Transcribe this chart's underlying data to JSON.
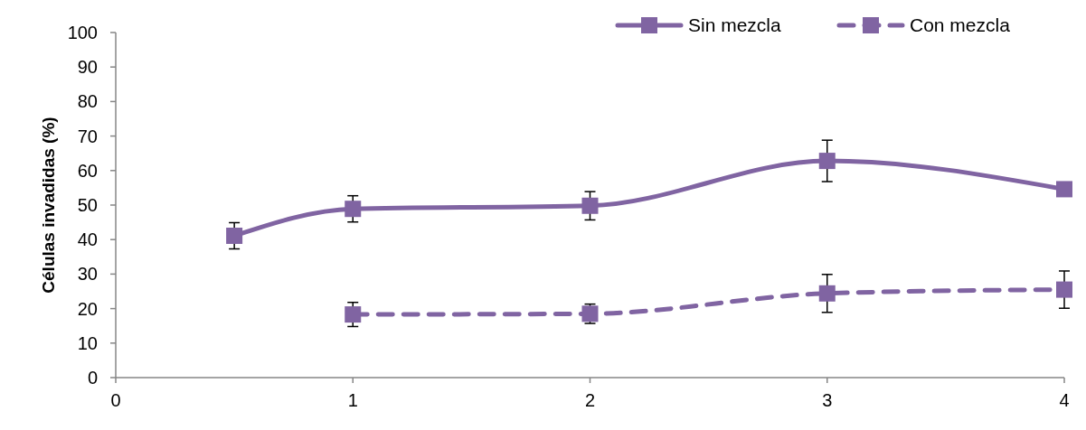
{
  "chart_data": {
    "type": "line",
    "ylabel": "Células invadidas (%)",
    "xlim": [
      0,
      4
    ],
    "xticks": [
      0,
      1,
      2,
      3,
      4
    ],
    "ylim": [
      0,
      100
    ],
    "yticks": [
      0,
      10,
      20,
      30,
      40,
      50,
      60,
      70,
      80,
      90,
      100
    ],
    "grid": false,
    "legend": "top right",
    "marker": "square",
    "series": [
      {
        "name": "Sin mezcla",
        "color": "#8064a2",
        "line_style": "solid",
        "x": [
          0.5,
          1,
          2,
          3,
          4
        ],
        "values": [
          41.1,
          48.9,
          49.8,
          62.8,
          54.6
        ],
        "errors": [
          3.8,
          3.8,
          4.1,
          6,
          null
        ]
      },
      {
        "name": "Con mezcla",
        "color": "#8064a2",
        "line_style": "dashed",
        "x": [
          1,
          2,
          3,
          4
        ],
        "values": [
          18.3,
          18.5,
          24.4,
          25.5
        ],
        "errors": [
          3.5,
          2.8,
          5.5,
          5.4
        ]
      }
    ]
  }
}
